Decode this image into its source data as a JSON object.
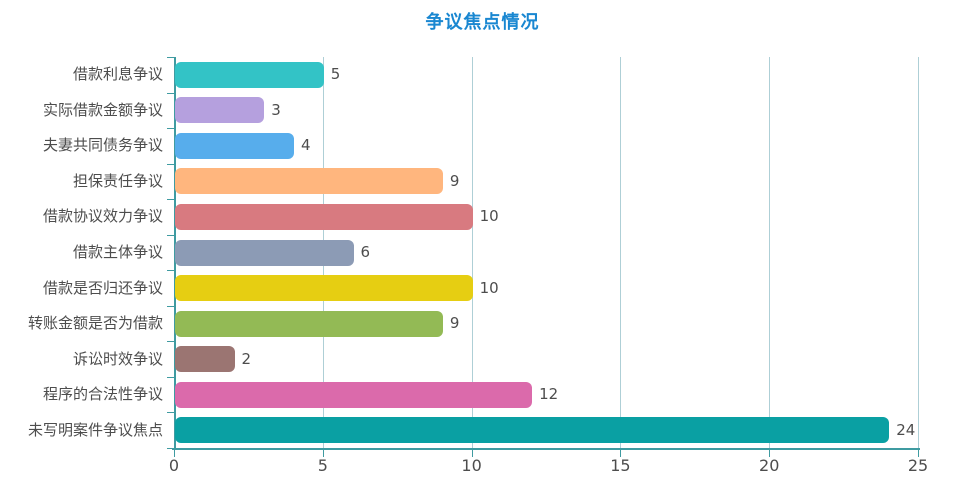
{
  "title": "争议焦点情况",
  "colors": {
    "title": "#1987d1",
    "axis": "#3f9ba1",
    "grid": "#aecfd6",
    "text": "#4d4d4d"
  },
  "chart_data": {
    "type": "bar",
    "orientation": "horizontal",
    "title": "争议焦点情况",
    "categories": [
      "借款利息争议",
      "实际借款金额争议",
      "夫妻共同债务争议",
      "担保责任争议",
      "借款协议效力争议",
      "借款主体争议",
      "借款是否归还争议",
      "转账金额是否为借款",
      "诉讼时效争议",
      "程序的合法性争议",
      "未写明案件争议焦点"
    ],
    "values": [
      5,
      3,
      4,
      9,
      10,
      6,
      10,
      9,
      2,
      12,
      24
    ],
    "bar_colors": [
      "#33c3c6",
      "#b5a0de",
      "#57adec",
      "#ffb67e",
      "#d87a80",
      "#8c9bb5",
      "#e6ce12",
      "#93ba55",
      "#9b7572",
      "#db6aab",
      "#0aa0a3"
    ],
    "xlabel": "",
    "ylabel": "",
    "xlim": [
      0,
      25
    ],
    "x_ticks": [
      0,
      5,
      10,
      15,
      20,
      25
    ],
    "grid": true,
    "legend": false,
    "value_labels": true
  }
}
